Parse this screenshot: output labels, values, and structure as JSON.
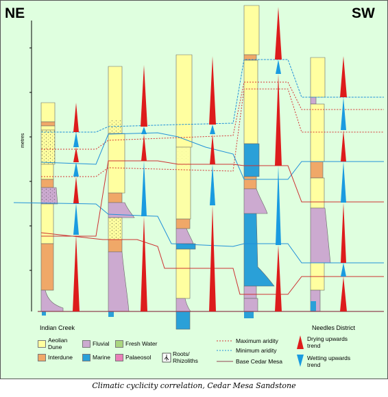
{
  "header": {
    "left_direction": "NE",
    "right_direction": "SW"
  },
  "axis": {
    "label": "metres"
  },
  "sections": {
    "left": "Indian Creek",
    "right": "Needles District"
  },
  "legend": {
    "facies": [
      {
        "label": "Aeolian Dune",
        "color": "#ffffa0"
      },
      {
        "label": "Fluvial",
        "color": "#ccaad0"
      },
      {
        "label": "Fresh Water",
        "color": "#aad680"
      },
      {
        "label": "Interdune",
        "color": "#f0a868"
      },
      {
        "label": "Marine",
        "color": "#2aa0d8"
      },
      {
        "label": "Palaeosol",
        "color": "#e880b8"
      },
      {
        "label": "Roots/ Rhizoliths",
        "icon": "roots-icon"
      }
    ],
    "lines": [
      {
        "label": "Maximum aridity",
        "color": "#d43030",
        "style": "dotted"
      },
      {
        "label": "Minimum aridity",
        "color": "#2090d8",
        "style": "dotted"
      },
      {
        "label": "Base Cedar Mesa",
        "color": "#904050",
        "style": "solid"
      }
    ],
    "trends": [
      {
        "label": "Drying upwards trend",
        "color": "#dd1c1c"
      },
      {
        "label": "Wetting upwards trend",
        "color": "#1a9be0"
      }
    ]
  },
  "caption": "Climatic cyclicity correlation, Cedar Mesa Sandstone",
  "colors": {
    "background": "#dfffdf",
    "dune": "#ffffa0",
    "interdune": "#f0a868",
    "fluvial": "#ccaad0",
    "marine": "#2aa0d8",
    "palaeosol": "#e880b8",
    "drying": "#dd1c1c",
    "wetting": "#1a9be0"
  }
}
